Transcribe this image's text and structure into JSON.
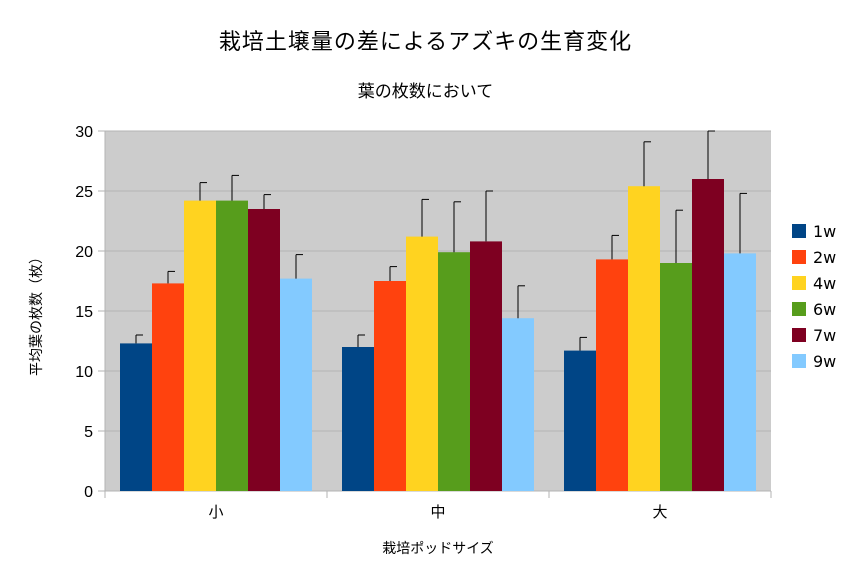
{
  "chart_data": {
    "type": "bar",
    "title": "栽培土壌量の差によるアズキの生育変化",
    "subtitle": "葉の枚数において",
    "xlabel": "栽培ポッドサイズ",
    "ylabel": "平均葉の枚数（枚）",
    "categories": [
      "小",
      "中",
      "大"
    ],
    "ylim": [
      0,
      30
    ],
    "yticks": [
      0,
      5,
      10,
      15,
      20,
      25,
      30
    ],
    "grid": true,
    "legend": "right",
    "plot_background": "#cccccc",
    "series": [
      {
        "name": "1w",
        "color": "#004586",
        "values": [
          12.3,
          12.0,
          11.7
        ],
        "errors": [
          0.7,
          1.0,
          1.1
        ]
      },
      {
        "name": "2w",
        "color": "#ff420e",
        "values": [
          17.3,
          17.5,
          19.3
        ],
        "errors": [
          1.0,
          1.2,
          2.0
        ]
      },
      {
        "name": "4w",
        "color": "#ffd320",
        "values": [
          24.2,
          21.2,
          25.4
        ],
        "errors": [
          1.5,
          3.1,
          3.7
        ]
      },
      {
        "name": "6w",
        "color": "#579d1c",
        "values": [
          24.2,
          19.9,
          19.0
        ],
        "errors": [
          2.1,
          4.2,
          4.4
        ]
      },
      {
        "name": "7w",
        "color": "#7e0021",
        "values": [
          23.5,
          20.8,
          26.0
        ],
        "errors": [
          1.2,
          4.2,
          4.0
        ]
      },
      {
        "name": "9w",
        "color": "#83caff",
        "values": [
          17.7,
          14.4,
          19.8
        ],
        "errors": [
          2.0,
          2.7,
          5.0
        ]
      }
    ]
  }
}
